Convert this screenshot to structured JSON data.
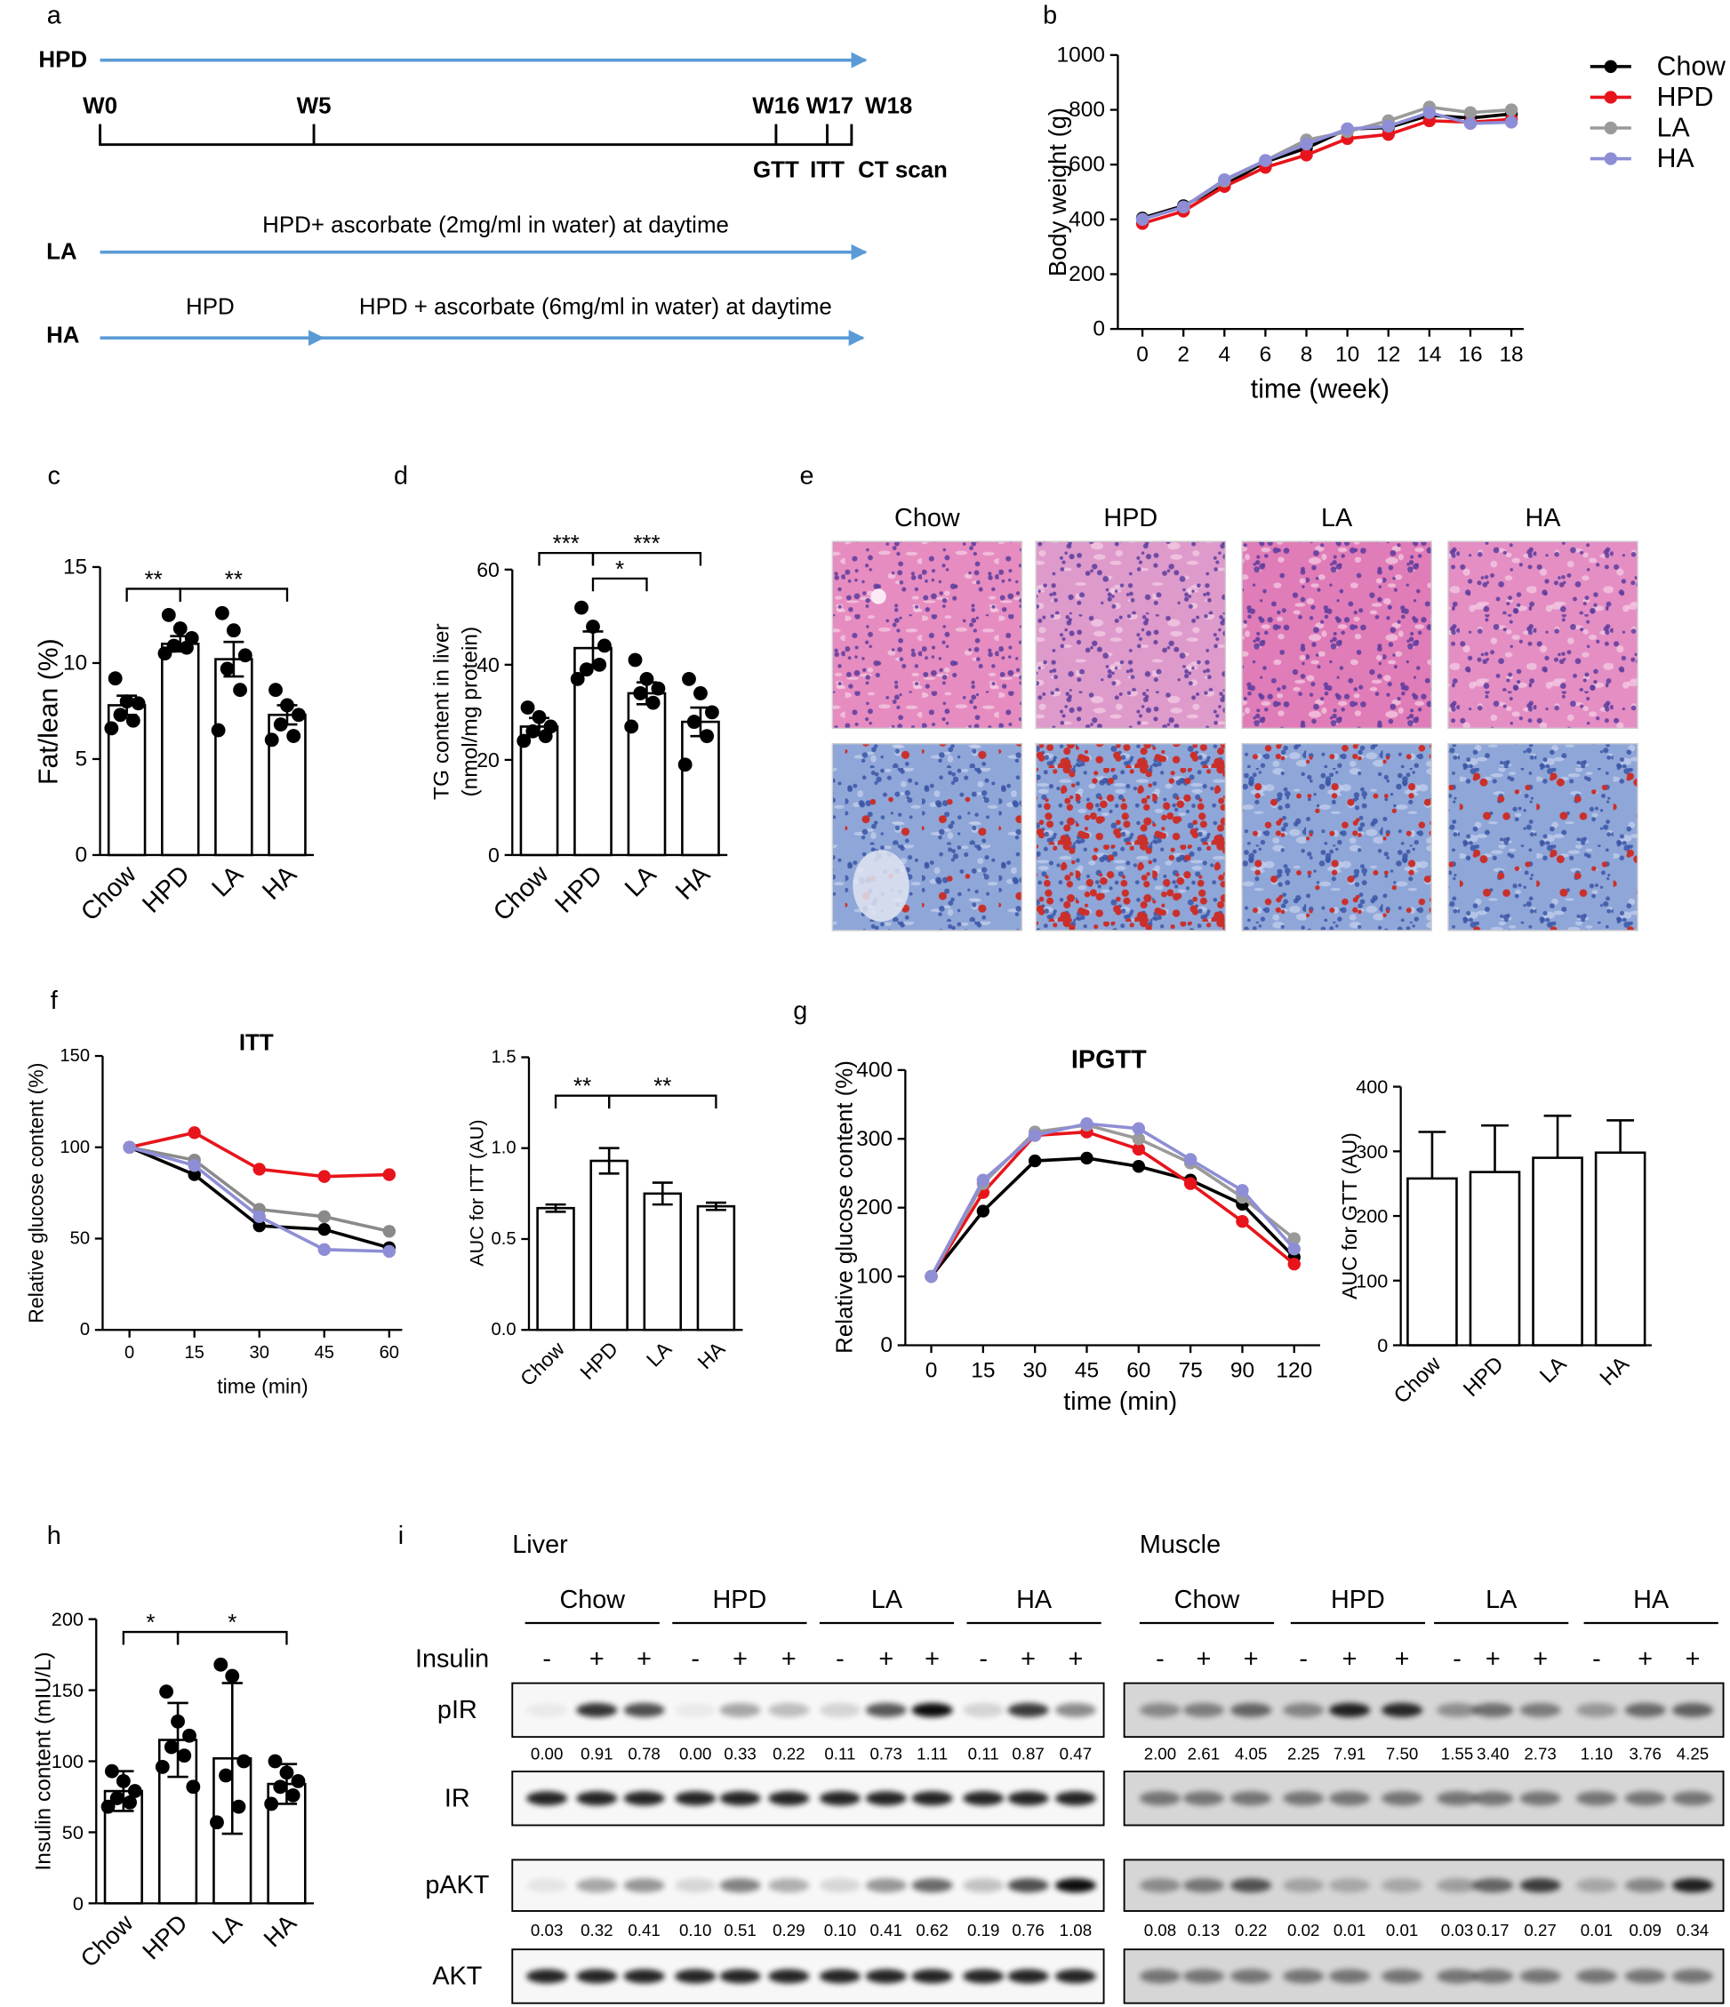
{
  "panel_labels": [
    "a",
    "b",
    "c",
    "d",
    "e",
    "f",
    "g",
    "h",
    "i"
  ],
  "timeline": {
    "hpd_label": "HPD",
    "weeks": [
      "W0",
      "W5",
      "W16",
      "W17",
      "W18"
    ],
    "tests": [
      "GTT",
      "ITT",
      "CT scan"
    ],
    "la_label": "LA",
    "la_text": "HPD+ ascorbate (2mg/ml in water) at daytime",
    "ha_label": "HA",
    "ha_text_1": "HPD",
    "ha_text_2": "HPD + ascorbate (6mg/ml in water) at daytime"
  },
  "histology": {
    "groups": [
      "Chow",
      "HPD",
      "LA",
      "HA"
    ]
  },
  "western_blot": {
    "insulin_label": "Insulin",
    "rows": [
      "pIR",
      "IR",
      "pAKT",
      "AKT"
    ],
    "tissues": [
      {
        "name": "Liver",
        "groups": [
          "Chow",
          "HPD",
          "LA",
          "HA"
        ],
        "insulin": [
          "-",
          "+",
          "+",
          "-",
          "+",
          "+",
          "-",
          "+",
          "+",
          "-",
          "+",
          "+"
        ],
        "pIR": [
          "0.00",
          "0.91",
          "0.78",
          "0.00",
          "0.33",
          "0.22",
          "0.11",
          "0.73",
          "1.11",
          "0.11",
          "0.87",
          "0.47"
        ],
        "pAKT": [
          "0.03",
          "0.32",
          "0.41",
          "0.10",
          "0.51",
          "0.29",
          "0.10",
          "0.41",
          "0.62",
          "0.19",
          "0.76",
          "1.08"
        ]
      },
      {
        "name": "Muscle",
        "groups": [
          "Chow",
          "HPD",
          "LA",
          "HA"
        ],
        "insulin": [
          "-",
          "+",
          "+",
          "-",
          "+",
          "+",
          "-",
          "+",
          "+",
          "-",
          "+",
          "+"
        ],
        "pIR": [
          "2.00",
          "2.61",
          "4.05",
          "2.25",
          "7.91",
          "7.50",
          "1.55",
          "3.40",
          "2.73",
          "1.10",
          "3.76",
          "4.25"
        ],
        "pAKT": [
          "0.08",
          "0.13",
          "0.22",
          "0.02",
          "0.01",
          "0.01",
          "0.03",
          "0.17",
          "0.27",
          "0.01",
          "0.09",
          "0.34"
        ]
      }
    ]
  },
  "chart_data": [
    {
      "type": "line",
      "xlabel": "time (week)",
      "ylabel": "Body weight (g)",
      "x": [
        0,
        2,
        4,
        6,
        8,
        10,
        12,
        14,
        16,
        18
      ],
      "xlim": [
        -1.2,
        18.6
      ],
      "xticks": [
        0,
        2,
        4,
        6,
        8,
        10,
        12,
        14,
        16,
        18
      ],
      "ylim": [
        0,
        1000
      ],
      "yticks": [
        0,
        200,
        400,
        600,
        800,
        1000
      ],
      "legend": "right",
      "series": [
        {
          "name": "Chow",
          "color": "#000000",
          "values": [
            405,
            450,
            525,
            610,
            660,
            730,
            735,
            780,
            770,
            785
          ]
        },
        {
          "name": "HPD",
          "color": "#e8141b",
          "values": [
            385,
            430,
            520,
            590,
            635,
            695,
            710,
            760,
            755,
            765
          ]
        },
        {
          "name": "LA",
          "color": "#9a9a9a",
          "values": [
            400,
            445,
            540,
            615,
            690,
            720,
            760,
            810,
            790,
            800
          ]
        },
        {
          "name": "HA",
          "color": "#8e8ed6",
          "values": [
            400,
            445,
            545,
            615,
            675,
            730,
            740,
            790,
            750,
            755
          ]
        }
      ]
    },
    {
      "type": "bar",
      "ylabel": "Fat/lean (%)",
      "categories": [
        "Chow",
        "HPD",
        "LA",
        "HA"
      ],
      "values": [
        7.8,
        11.0,
        10.2,
        7.3
      ],
      "errors": [
        0.5,
        0.4,
        0.9,
        0.5
      ],
      "points": [
        [
          9.2,
          8.0,
          7.9,
          7.3,
          7.0,
          6.6
        ],
        [
          12.5,
          11.8,
          11.3,
          10.9,
          10.8,
          10.5
        ],
        [
          12.6,
          11.7,
          10.4,
          9.7,
          8.6,
          6.5
        ],
        [
          8.6,
          7.8,
          7.3,
          6.8,
          6.2,
          6.0
        ]
      ],
      "color": "#ffffff",
      "ylim": [
        0,
        15
      ],
      "yticks": [
        0,
        5,
        10,
        15
      ],
      "annotations": [
        "**",
        "**"
      ]
    },
    {
      "type": "bar",
      "ylabel": [
        "TG content in liver",
        "(nmol/mg protein)"
      ],
      "categories": [
        "Chow",
        "HPD",
        "LA",
        "HA"
      ],
      "values": [
        27,
        43.5,
        34,
        28
      ],
      "errors": [
        1.8,
        3.5,
        2.3,
        3.0
      ],
      "points": [
        [
          31,
          29,
          27,
          26,
          25,
          24
        ],
        [
          52,
          48,
          44,
          39,
          40,
          37
        ],
        [
          41,
          37,
          35,
          34,
          32,
          27
        ],
        [
          37,
          34,
          30,
          28,
          25,
          19
        ]
      ],
      "color": "#ffffff",
      "ylim": [
        0,
        60
      ],
      "yticks": [
        0,
        20,
        40,
        60
      ],
      "annotations": [
        "***",
        "*",
        "***"
      ]
    },
    {
      "type": "line",
      "title": "ITT",
      "xlabel": "time (min)",
      "ylabel": "Relative glucose content (%)",
      "x": [
        0,
        15,
        30,
        45,
        60
      ],
      "xlim": [
        -6.2,
        63
      ],
      "xticks": [
        0,
        15,
        30,
        45,
        60
      ],
      "ylim": [
        0,
        150
      ],
      "yticks": [
        0,
        50,
        100,
        150
      ],
      "series": [
        {
          "color": "#000000",
          "values": [
            100,
            85,
            57,
            55,
            45
          ]
        },
        {
          "color": "#e8141b",
          "values": [
            100,
            108,
            88,
            84,
            85
          ]
        },
        {
          "color": "#8a8a8a",
          "values": [
            100,
            93,
            66,
            62,
            54
          ]
        },
        {
          "color": "#8e8ed6",
          "values": [
            100,
            90,
            62,
            44,
            43
          ]
        }
      ]
    },
    {
      "type": "bar",
      "ylabel": "AUC  for ITT (AU)",
      "categories": [
        "Chow",
        "HPD",
        "LA",
        "HA"
      ],
      "values": [
        0.67,
        0.93,
        0.75,
        0.68
      ],
      "errors": [
        0.02,
        0.07,
        0.06,
        0.02
      ],
      "color": "#ffffff",
      "ylim": [
        0,
        1.5
      ],
      "yticks": [
        {
          "value": 0,
          "label": "0.0"
        },
        {
          "value": 0.5,
          "label": "0.5"
        },
        {
          "value": 1,
          "label": "1.0"
        },
        {
          "value": 1.5,
          "label": "1.5"
        }
      ],
      "annotations": [
        "**",
        "**"
      ]
    },
    {
      "type": "line",
      "title": "IPGTT",
      "xlabel": "time (min)",
      "ylabel": "Relative glucose content (%)",
      "categories": [
        "0",
        "15",
        "30",
        "45",
        "60",
        "75",
        "90",
        "120"
      ],
      "ylim": [
        0,
        400
      ],
      "yticks": [
        0,
        100,
        200,
        300,
        400
      ],
      "series": [
        {
          "color": "#000000",
          "values": [
            100,
            195,
            268,
            272,
            260,
            240,
            205,
            128
          ]
        },
        {
          "color": "#e8141b",
          "values": [
            100,
            222,
            305,
            310,
            285,
            235,
            180,
            118
          ]
        },
        {
          "color": "#9a9a9a",
          "values": [
            100,
            235,
            310,
            320,
            300,
            265,
            215,
            155
          ]
        },
        {
          "color": "#8e8ed6",
          "values": [
            100,
            240,
            305,
            322,
            315,
            270,
            225,
            140
          ]
        }
      ]
    },
    {
      "type": "bar",
      "ylabel": "AUC for GTT (AU)",
      "categories": [
        "Chow",
        "HPD",
        "LA",
        "HA"
      ],
      "values": [
        258,
        268,
        290,
        298
      ],
      "errors": [
        72,
        72,
        65,
        50
      ],
      "color": "#ffffff",
      "ylim": [
        0,
        400
      ],
      "yticks": [
        0,
        100,
        200,
        300,
        400
      ]
    },
    {
      "type": "bar",
      "ylabel": "Insulin content (mIU/L)",
      "categories": [
        "Chow",
        "HPD",
        "LA",
        "HA"
      ],
      "values": [
        79,
        115,
        102,
        84
      ],
      "errors": [
        14,
        26,
        53,
        14
      ],
      "points": [
        [
          93,
          86,
          79,
          74,
          71,
          68
        ],
        [
          149,
          128,
          118,
          110,
          104,
          96,
          82
        ],
        [
          168,
          160,
          100,
          90,
          68,
          57
        ],
        [
          100,
          92,
          86,
          82,
          76,
          70
        ]
      ],
      "color": "#ffffff",
      "ylim": [
        0,
        200
      ],
      "yticks": [
        0,
        50,
        100,
        150,
        200
      ],
      "annotations": [
        "*",
        "*"
      ]
    }
  ]
}
